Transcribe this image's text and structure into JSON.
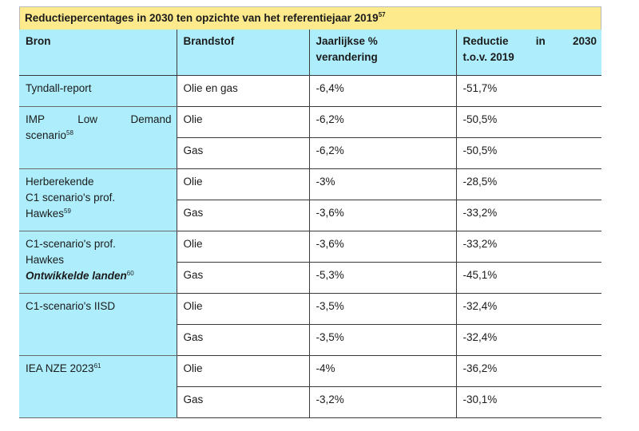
{
  "title": {
    "text": "Reductiepercentages in 2030 ten opzichte van het referentiejaar 2019",
    "footnote": "57"
  },
  "headers": {
    "bron": "Bron",
    "brandstof": "Brandstof",
    "jaarlijks": "Jaarlijkse % verandering",
    "reductie_words": [
      "Reductie",
      "in",
      "2030"
    ],
    "reductie_line2": "t.o.v. 2019"
  },
  "groups": [
    {
      "source_lines": [
        "Tyndall-report"
      ],
      "rows": [
        {
          "fuel": "Olie en gas",
          "annual": "-6,4%",
          "reduction": "-51,7%"
        }
      ]
    },
    {
      "source_lines": [
        "IMP Low Demand",
        "scenario"
      ],
      "footnote": "58",
      "rows": [
        {
          "fuel": "Olie",
          "annual": "-6,2%",
          "reduction": "-50,5%"
        },
        {
          "fuel": "Gas",
          "annual": "-6,2%",
          "reduction": "-50,5%"
        }
      ]
    },
    {
      "source_lines": [
        "Herberekende",
        "C1 scenario's prof.",
        "Hawkes"
      ],
      "footnote": "59",
      "rows": [
        {
          "fuel": "Olie",
          "annual": "-3%",
          "reduction": "-28,5%"
        },
        {
          "fuel": "Gas",
          "annual": "-3,6%",
          "reduction": "-33,2%"
        }
      ]
    },
    {
      "source_lines": [
        "C1-scenario's prof.",
        "Hawkes"
      ],
      "emphasis": "Ontwikkelde landen",
      "footnote": "60",
      "rows": [
        {
          "fuel": "Olie",
          "annual": "-3,6%",
          "reduction": "-33,2%"
        },
        {
          "fuel": "Gas",
          "annual": "-5,3%",
          "reduction": "-45,1%"
        }
      ]
    },
    {
      "source_lines": [
        "C1-scenario's IISD"
      ],
      "rows": [
        {
          "fuel": "Olie",
          "annual": "-3,5%",
          "reduction": "-32,4%"
        },
        {
          "fuel": "Gas",
          "annual": "-3,5%",
          "reduction": "-32,4%"
        }
      ]
    },
    {
      "source_lines": [
        "IEA NZE 2023"
      ],
      "footnote": "61",
      "rows": [
        {
          "fuel": "Olie",
          "annual": "-4%",
          "reduction": "-36,2%"
        },
        {
          "fuel": "Gas",
          "annual": "-3,2%",
          "reduction": "-30,1%"
        }
      ]
    }
  ],
  "colors": {
    "title_bg": "#fcea8c",
    "header_bg": "#aeeefc",
    "source_bg": "#aeeefc",
    "value_bg": "#ffffff"
  }
}
